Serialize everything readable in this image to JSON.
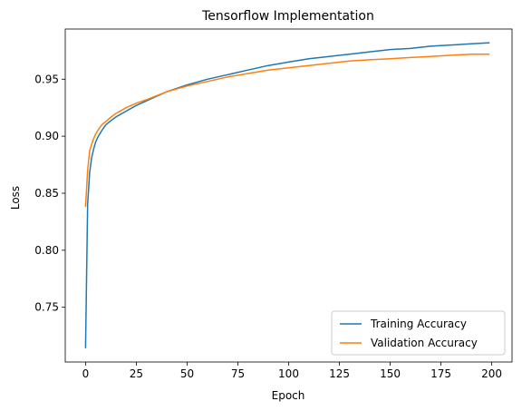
{
  "chart_data": {
    "type": "line",
    "title": "Tensorflow Implementation",
    "xlabel": "Epoch",
    "ylabel": "Loss",
    "xlim": [
      -10,
      210
    ],
    "ylim": [
      0.702,
      0.994
    ],
    "xticks": [
      0,
      25,
      50,
      75,
      100,
      125,
      150,
      175,
      200
    ],
    "yticks": [
      0.75,
      0.8,
      0.85,
      0.9,
      0.95
    ],
    "ytick_labels": [
      "0.75",
      "0.80",
      "0.85",
      "0.90",
      "0.95"
    ],
    "grid": false,
    "legend_position": "lower-right",
    "series": [
      {
        "name": "Training Accuracy",
        "color": "#1f77b4",
        "x": [
          0,
          1,
          2,
          3,
          4,
          5,
          6,
          8,
          10,
          12,
          15,
          20,
          25,
          30,
          40,
          50,
          60,
          70,
          80,
          90,
          100,
          110,
          120,
          130,
          140,
          150,
          160,
          170,
          180,
          190,
          199
        ],
        "y": [
          0.714,
          0.84,
          0.868,
          0.881,
          0.889,
          0.895,
          0.899,
          0.905,
          0.91,
          0.913,
          0.917,
          0.922,
          0.927,
          0.931,
          0.939,
          0.945,
          0.95,
          0.954,
          0.958,
          0.962,
          0.965,
          0.968,
          0.97,
          0.972,
          0.974,
          0.976,
          0.977,
          0.979,
          0.98,
          0.981,
          0.982
        ]
      },
      {
        "name": "Validation Accuracy",
        "color": "#ff7f0e",
        "x": [
          0,
          1,
          2,
          3,
          4,
          5,
          6,
          8,
          10,
          12,
          15,
          20,
          25,
          30,
          40,
          50,
          60,
          70,
          80,
          90,
          100,
          110,
          120,
          130,
          140,
          150,
          160,
          170,
          180,
          190,
          199
        ],
        "y": [
          0.838,
          0.87,
          0.887,
          0.893,
          0.898,
          0.902,
          0.905,
          0.91,
          0.913,
          0.916,
          0.92,
          0.925,
          0.929,
          0.932,
          0.939,
          0.944,
          0.948,
          0.952,
          0.955,
          0.958,
          0.96,
          0.962,
          0.964,
          0.966,
          0.967,
          0.968,
          0.969,
          0.97,
          0.971,
          0.972,
          0.972
        ]
      }
    ]
  }
}
